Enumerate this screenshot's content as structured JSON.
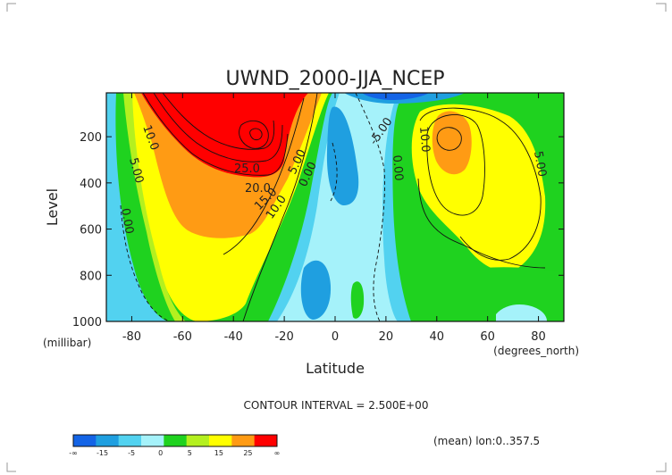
{
  "chart_data": {
    "type": "contour",
    "title": "UWND_2000-JJA_NCEP",
    "xlabel": "Latitude",
    "ylabel": "Level",
    "x_units": "(degrees_north)",
    "y_units": "(millibar)",
    "xlim": [
      -90,
      90
    ],
    "ylim": [
      1000,
      10
    ],
    "y_inverted": true,
    "x_ticks": [
      -80,
      -60,
      -40,
      -20,
      0,
      20,
      40,
      60,
      80
    ],
    "y_ticks": [
      200,
      400,
      600,
      800,
      1000
    ],
    "contour_interval_text": "CONTOUR INTERVAL = 2.500E+00",
    "footnote": "(mean) lon:0..357.5",
    "contour_labels": [
      {
        "text": "10.0",
        "x": -68,
        "y": 180
      },
      {
        "text": "5.00",
        "x": -77,
        "y": 300
      },
      {
        "text": "0.00",
        "x": -84,
        "y": 560
      },
      {
        "text": "25.0",
        "x": -40,
        "y": 280
      },
      {
        "text": "20.0",
        "x": -37,
        "y": 400
      },
      {
        "text": "15.0",
        "x": -31,
        "y": 480
      },
      {
        "text": "10.0",
        "x": -26,
        "y": 560
      },
      {
        "text": "5.00",
        "x": -13,
        "y": 320
      },
      {
        "text": "0.00",
        "x": -11,
        "y": 380
      },
      {
        "text": "-5.00",
        "x": 19,
        "y": 150
      },
      {
        "text": "0.00",
        "x": 26,
        "y": 300
      },
      {
        "text": "10.0",
        "x": 37,
        "y": 200
      },
      {
        "text": "5.00",
        "x": 83,
        "y": 270
      }
    ],
    "features": [
      {
        "kind": "westerly jet",
        "center_lat": -30,
        "center_level": 200,
        "max_value": 30
      },
      {
        "kind": "westerly jet",
        "center_lat": 45,
        "center_level": 200,
        "max_value": 25
      },
      {
        "kind": "easterlies",
        "center_lat": 10,
        "center_level": 100,
        "min_value": -15
      }
    ],
    "colorbar": {
      "labels": [
        "-∞",
        "-15",
        "-5",
        "0",
        "5",
        "15",
        "25",
        "∞"
      ],
      "colors": [
        "#1464e6",
        "#1f9fe0",
        "#52d2f0",
        "#a5f2fa",
        "#1fd21f",
        "#b4f01f",
        "#ffff00",
        "#ff9b14",
        "#ff0000"
      ]
    }
  }
}
